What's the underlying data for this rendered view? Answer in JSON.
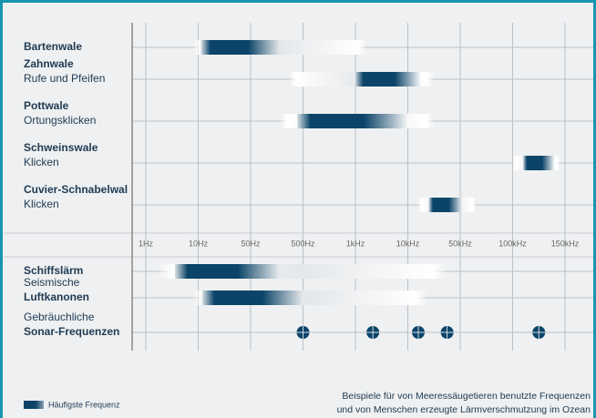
{
  "chart_data": {
    "type": "range",
    "color": "#0b4468",
    "xticks": [
      {
        "value": 1,
        "label": "1Hz"
      },
      {
        "value": 10,
        "label": "10Hz"
      },
      {
        "value": 50,
        "label": "50Hz"
      },
      {
        "value": 500,
        "label": "500Hz"
      },
      {
        "value": 1000,
        "label": "1kHz"
      },
      {
        "value": 10000,
        "label": "10kHz"
      },
      {
        "value": 50000,
        "label": "50kHz"
      },
      {
        "value": 100000,
        "label": "100kHz"
      },
      {
        "value": 150000,
        "label": "150kHz"
      }
    ],
    "rows": [
      {
        "lines": [
          {
            "text": "Bartenwale",
            "bold": true
          }
        ],
        "range": [
          9,
          3000
        ],
        "peak": [
          12,
          300
        ]
      },
      {
        "lines": [
          {
            "text": "Zahnwale",
            "bold": true
          },
          {
            "text": "Rufe und Pfeifen",
            "bold": false
          }
        ],
        "range": [
          380,
          30000
        ],
        "peak": [
          1000,
          20000
        ]
      },
      {
        "lines": [
          {
            "text": "Pottwale",
            "bold": true
          },
          {
            "text": "Ortungsklicken",
            "bold": false
          }
        ],
        "range": [
          300,
          30000
        ],
        "peak": [
          450,
          10000
        ]
      },
      {
        "lines": [
          {
            "text": "Schweinswale",
            "bold": true
          },
          {
            "text": "Klicken",
            "bold": false
          }
        ],
        "range": [
          100000,
          145000
        ],
        "peak": [
          110000,
          140000
        ]
      },
      {
        "lines": [
          {
            "text": "Cuvier-Schnabelwal",
            "bold": true
          },
          {
            "text": "Klicken",
            "bold": false
          }
        ],
        "range": [
          18000,
          65000
        ],
        "peak": [
          26000,
          52000
        ]
      },
      {
        "lines": [
          {
            "text": "Schiffslärm",
            "bold": true
          }
        ],
        "range": [
          3,
          40000
        ],
        "peak": [
          6,
          300
        ]
      },
      {
        "lines": [
          {
            "text": "Seismische",
            "bold": false
          },
          {
            "text": "Luftkanonen",
            "bold": true
          }
        ],
        "range": [
          9,
          25000
        ],
        "peak": [
          13,
          500
        ]
      },
      {
        "lines": [
          {
            "text": "Gebräuchliche",
            "bold": false
          },
          {
            "text": "Sonar-Frequenzen",
            "bold": true
          }
        ],
        "points": [
          500,
          4000,
          18000,
          40000,
          125000
        ]
      }
    ],
    "legend": "Häufigste Frequenz",
    "caption": [
      "Beispiele für von Meeressäugetieren benutzte Frequenzen",
      "und von Menschen erzeugte Lärmverschmutzung im Ozean"
    ]
  }
}
